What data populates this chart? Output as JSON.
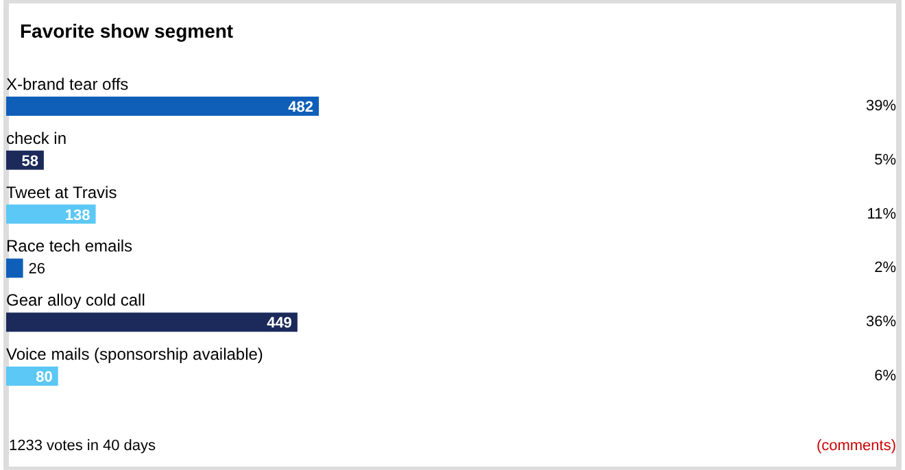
{
  "chart_data": {
    "type": "bar",
    "orientation": "horizontal",
    "title": "Favorite show segment",
    "categories": [
      "X-brand tear offs",
      "check in",
      "Tweet at Travis",
      "Race tech emails",
      "Gear alloy cold call",
      "Voice mails (sponsorship available)"
    ],
    "values": [
      482,
      58,
      138,
      26,
      449,
      80
    ],
    "colors": [
      "#0f5fb8",
      "#1b2a5a",
      "#5bc8f5",
      "#0f5fb8",
      "#1b2a5a",
      "#5bc8f5"
    ],
    "xlim": [
      0,
      1376
    ],
    "tick_labels": false,
    "grid": false,
    "data_labels": true,
    "annotations": [
      "39%",
      "5%",
      "11%",
      "2%",
      "36%",
      "6%",
      "1233 votes in 40 days",
      "(comments)"
    ]
  }
}
